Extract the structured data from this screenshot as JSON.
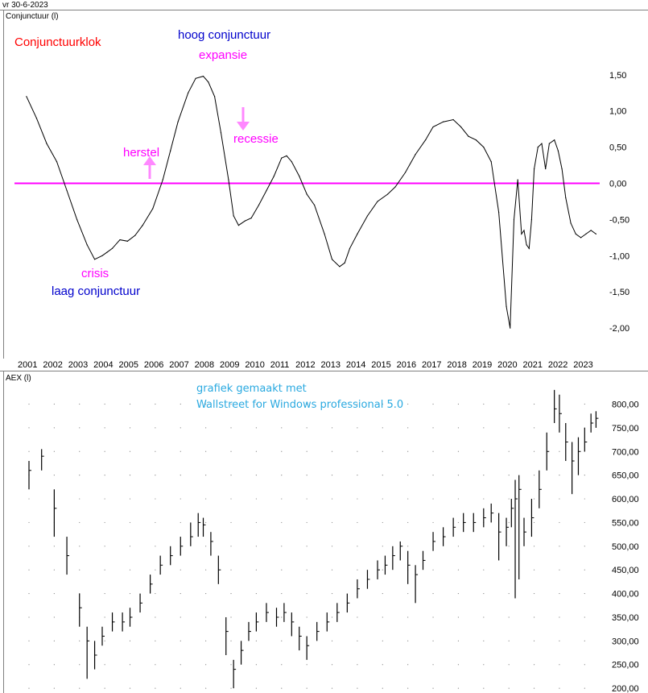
{
  "header": {
    "date_label": "vr 30-6-2023"
  },
  "colors": {
    "background": "#ffffff",
    "panel_border": "#808080",
    "line": "#000000",
    "zero_line": "#ff00ff",
    "red_text": "#ff0000",
    "blue_text": "#0000cc",
    "magenta_text": "#ff00ff",
    "arrow": "#ff88ff",
    "note_text": "#29a9e0"
  },
  "annotations": {
    "conjunctuurklok": "Conjunctuurklok",
    "hoog": "hoog conjunctuur",
    "expansie": "expansie",
    "herstel": "herstel",
    "recessie": "recessie",
    "crisis": "crisis",
    "laag": "laag conjunctuur",
    "note_line1": "grafiek gemaakt met",
    "note_line2": "Wallstreet for Windows professional 5.0"
  },
  "x_axis": {
    "years": [
      "2001",
      "2002",
      "2003",
      "2004",
      "2005",
      "2006",
      "2007",
      "2008",
      "2009",
      "2010",
      "2011",
      "2012",
      "2013",
      "2014",
      "2015",
      "2016",
      "2017",
      "2018",
      "2019",
      "2020",
      "2021",
      "2022",
      "2023"
    ]
  },
  "chart_data": [
    {
      "type": "line",
      "title": "Conjunctuur (l)",
      "ylim": [
        -2.4,
        2.2
      ],
      "y_ticks": [
        "1,50",
        "1,00",
        "0,50",
        "0,00",
        "-0,50",
        "-1,00",
        "-1,50",
        "-2,00"
      ],
      "reference_line": 0,
      "series": [
        {
          "x": [
            2000.9,
            2001.3,
            2001.7,
            2002.1,
            2002.5,
            2002.9,
            2003.3,
            2003.6,
            2003.9,
            2004.1,
            2004.3,
            2004.6,
            2004.9,
            2005.2,
            2005.5,
            2005.9,
            2006.3,
            2006.6,
            2006.9,
            2007.3,
            2007.6,
            2007.9,
            2008.1,
            2008.35,
            2008.6,
            2008.9,
            2009.1,
            2009.3,
            2009.55,
            2009.8,
            2010.1,
            2010.4,
            2010.7,
            2011.0,
            2011.2,
            2011.4,
            2011.7,
            2012.0,
            2012.3,
            2012.7,
            2013.0,
            2013.3,
            2013.5,
            2013.7,
            2014.0,
            2014.4,
            2014.8,
            2015.2,
            2015.5,
            2015.9,
            2016.3,
            2016.7,
            2017.0,
            2017.4,
            2017.8,
            2018.1,
            2018.4,
            2018.7,
            2019.0,
            2019.3,
            2019.6,
            2019.9,
            2020.05,
            2020.2,
            2020.35,
            2020.5,
            2020.6,
            2020.7,
            2020.8,
            2020.9,
            2021.0,
            2021.15,
            2021.3,
            2021.45,
            2021.6,
            2021.8,
            2021.95,
            2022.1,
            2022.25,
            2022.45,
            2022.65,
            2022.85,
            2023.05,
            2023.25,
            2023.45
          ],
          "y": [
            1.2,
            0.9,
            0.55,
            0.3,
            -0.1,
            -0.5,
            -0.85,
            -1.05,
            -1.0,
            -0.95,
            -0.9,
            -0.78,
            -0.8,
            -0.72,
            -0.58,
            -0.35,
            0.05,
            0.45,
            0.85,
            1.25,
            1.45,
            1.48,
            1.4,
            1.2,
            0.7,
            0.05,
            -0.45,
            -0.58,
            -0.52,
            -0.48,
            -0.3,
            -0.1,
            0.1,
            0.35,
            0.38,
            0.3,
            0.1,
            -0.15,
            -0.3,
            -0.7,
            -1.05,
            -1.15,
            -1.1,
            -0.9,
            -0.7,
            -0.45,
            -0.25,
            -0.15,
            -0.05,
            0.15,
            0.4,
            0.6,
            0.78,
            0.85,
            0.88,
            0.78,
            0.65,
            0.6,
            0.5,
            0.3,
            -0.4,
            -1.7,
            -2.0,
            -0.5,
            0.05,
            -0.7,
            -0.65,
            -0.85,
            -0.9,
            -0.5,
            0.2,
            0.5,
            0.55,
            0.2,
            0.55,
            0.6,
            0.45,
            0.2,
            -0.2,
            -0.55,
            -0.7,
            -0.75,
            -0.7,
            -0.65,
            -0.7
          ]
        }
      ]
    },
    {
      "type": "bar",
      "title": "AEX (l)",
      "ylim": [
        190,
        840
      ],
      "y_ticks": [
        "800,00",
        "750,00",
        "700,00",
        "650,00",
        "600,00",
        "550,00",
        "500,00",
        "450,00",
        "400,00",
        "350,00",
        "300,00",
        "250,00",
        "200,00"
      ],
      "series": [
        {
          "x": [
            2001.0,
            2001.5,
            2002.0,
            2002.5,
            2003.0,
            2003.3,
            2003.6,
            2003.9,
            2004.3,
            2004.7,
            2005.0,
            2005.4,
            2005.8,
            2006.2,
            2006.6,
            2007.0,
            2007.4,
            2007.7,
            2007.9,
            2008.2,
            2008.5,
            2008.8,
            2009.1,
            2009.4,
            2009.7,
            2010.0,
            2010.4,
            2010.8,
            2011.1,
            2011.4,
            2011.7,
            2012.0,
            2012.4,
            2012.8,
            2013.2,
            2013.6,
            2014.0,
            2014.4,
            2014.8,
            2015.1,
            2015.4,
            2015.7,
            2016.0,
            2016.3,
            2016.6,
            2017.0,
            2017.4,
            2017.8,
            2018.2,
            2018.6,
            2019.0,
            2019.3,
            2019.6,
            2019.9,
            2020.1,
            2020.25,
            2020.4,
            2020.6,
            2020.9,
            2021.2,
            2021.5,
            2021.8,
            2022.0,
            2022.25,
            2022.5,
            2022.75,
            2023.0,
            2023.25,
            2023.45
          ],
          "y": [
            660,
            690,
            580,
            480,
            370,
            300,
            270,
            310,
            340,
            340,
            350,
            380,
            420,
            460,
            480,
            500,
            520,
            550,
            545,
            510,
            450,
            320,
            240,
            280,
            320,
            340,
            360,
            350,
            360,
            340,
            310,
            290,
            320,
            340,
            360,
            380,
            410,
            430,
            450,
            460,
            480,
            500,
            460,
            440,
            470,
            510,
            520,
            540,
            550,
            550,
            560,
            570,
            530,
            540,
            580,
            600,
            620,
            530,
            560,
            620,
            700,
            790,
            780,
            720,
            680,
            700,
            720,
            760,
            770
          ],
          "high": [
            680,
            705,
            620,
            520,
            400,
            330,
            300,
            330,
            360,
            360,
            370,
            400,
            440,
            480,
            500,
            520,
            550,
            570,
            560,
            530,
            480,
            350,
            260,
            300,
            340,
            360,
            380,
            370,
            380,
            360,
            330,
            310,
            340,
            360,
            380,
            400,
            430,
            450,
            470,
            480,
            500,
            510,
            490,
            460,
            490,
            530,
            540,
            560,
            570,
            570,
            580,
            590,
            570,
            560,
            600,
            640,
            650,
            560,
            600,
            660,
            740,
            830,
            820,
            760,
            720,
            730,
            750,
            780,
            785
          ],
          "low": [
            620,
            660,
            520,
            440,
            330,
            220,
            240,
            290,
            320,
            320,
            330,
            360,
            400,
            440,
            460,
            480,
            500,
            520,
            520,
            480,
            420,
            270,
            200,
            250,
            300,
            320,
            340,
            330,
            340,
            310,
            280,
            260,
            300,
            320,
            340,
            360,
            390,
            410,
            430,
            440,
            450,
            470,
            420,
            380,
            450,
            490,
            500,
            520,
            530,
            530,
            540,
            550,
            470,
            500,
            540,
            390,
            430,
            500,
            520,
            580,
            660,
            760,
            740,
            680,
            610,
            650,
            700,
            740,
            750
          ]
        }
      ]
    }
  ]
}
